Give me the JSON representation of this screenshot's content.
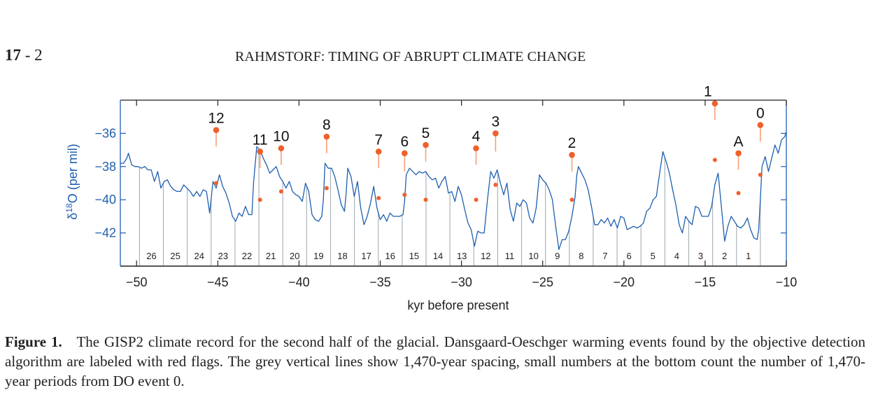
{
  "page": {
    "page_number_bold": "17",
    "page_number_sep": " - ",
    "page_number_sub": "2",
    "running_head": "RAHMSTORF: TIMING OF ABRUPT CLIMATE CHANGE"
  },
  "caption": {
    "label": "Figure 1.",
    "text": "The GISP2 climate record for the second half of the glacial. Dansgaard-Oeschger warming events found by the objective detection algorithm are labeled with red flags. The grey vertical lines show 1,470-year spacing, small numbers at the bottom count the number of 1,470-year periods from DO event 0."
  },
  "colors": {
    "series": "#1f5fb0",
    "flag": "#f0602a",
    "flag_stem": "#f4a07a",
    "grid_line": "#a9b4bb",
    "axis": "#231f20",
    "y_axis": "#1f5fb0"
  },
  "chart_data": {
    "type": "line",
    "title": "",
    "xlabel": "kyr before present",
    "ylabel": "δ18O (per mil)",
    "ylabel_parts": {
      "delta": "δ",
      "sup": "18",
      "rest": "O (per mil)"
    },
    "xlim": [
      -51,
      -10
    ],
    "ylim": [
      -44,
      -34
    ],
    "xticks": [
      -50,
      -45,
      -40,
      -35,
      -30,
      -25,
      -20,
      -15,
      -10
    ],
    "xtick_labels": [
      "−50",
      "−45",
      "−40",
      "−35",
      "−30",
      "−25",
      "−20",
      "−15",
      "−10"
    ],
    "yticks": [
      -36,
      -38,
      -40,
      -42
    ],
    "ytick_labels": [
      "−36",
      "−38",
      "−40",
      "−42"
    ],
    "grid": false,
    "period_years": 1470,
    "reference_event_kyr": -11.6,
    "period_lines_kyr": [
      -11.6,
      -13.07,
      -14.54,
      -16.01,
      -17.48,
      -18.95,
      -20.42,
      -21.89,
      -23.36,
      -24.83,
      -26.3,
      -27.77,
      -29.24,
      -30.71,
      -32.18,
      -33.65,
      -35.12,
      -36.59,
      -38.06,
      -39.53,
      -41.0,
      -42.47,
      -43.94,
      -45.41,
      -46.88,
      -48.35,
      -49.82
    ],
    "period_counts": [
      "1",
      "2",
      "3",
      "4",
      "5",
      "6",
      "7",
      "8",
      "9",
      "10",
      "11",
      "12",
      "13",
      "14",
      "15",
      "16",
      "17",
      "18",
      "19",
      "20",
      "21",
      "22",
      "23",
      "24",
      "25",
      "26"
    ],
    "series": [
      {
        "name": "GISP2 δ18O",
        "points": [
          [
            -51.0,
            -37.8
          ],
          [
            -50.8,
            -37.8
          ],
          [
            -50.6,
            -37.5
          ],
          [
            -50.5,
            -37.2
          ],
          [
            -50.3,
            -37.9
          ],
          [
            -50.1,
            -38.0
          ],
          [
            -49.9,
            -38.0
          ],
          [
            -49.7,
            -38.1
          ],
          [
            -49.5,
            -38.0
          ],
          [
            -49.3,
            -38.2
          ],
          [
            -49.1,
            -38.2
          ],
          [
            -48.9,
            -38.9
          ],
          [
            -48.7,
            -38.3
          ],
          [
            -48.5,
            -39.3
          ],
          [
            -48.3,
            -38.9
          ],
          [
            -48.1,
            -38.8
          ],
          [
            -47.9,
            -39.2
          ],
          [
            -47.7,
            -39.4
          ],
          [
            -47.5,
            -39.5
          ],
          [
            -47.3,
            -39.5
          ],
          [
            -47.1,
            -39.1
          ],
          [
            -46.9,
            -39.3
          ],
          [
            -46.7,
            -39.5
          ],
          [
            -46.5,
            -39.8
          ],
          [
            -46.3,
            -39.5
          ],
          [
            -46.1,
            -39.8
          ],
          [
            -45.9,
            -39.4
          ],
          [
            -45.7,
            -39.5
          ],
          [
            -45.5,
            -40.8
          ],
          [
            -45.3,
            -38.9
          ],
          [
            -45.1,
            -39.3
          ],
          [
            -44.9,
            -38.5
          ],
          [
            -44.7,
            -39.2
          ],
          [
            -44.5,
            -39.6
          ],
          [
            -44.3,
            -40.2
          ],
          [
            -44.1,
            -41.0
          ],
          [
            -43.9,
            -41.3
          ],
          [
            -43.7,
            -40.8
          ],
          [
            -43.5,
            -41.0
          ],
          [
            -43.3,
            -40.4
          ],
          [
            -43.1,
            -40.9
          ],
          [
            -42.9,
            -40.9
          ],
          [
            -42.8,
            -39.0
          ],
          [
            -42.6,
            -36.8
          ],
          [
            -42.4,
            -37.0
          ],
          [
            -42.2,
            -37.5
          ],
          [
            -42.0,
            -37.9
          ],
          [
            -41.8,
            -38.4
          ],
          [
            -41.6,
            -38.2
          ],
          [
            -41.4,
            -38.0
          ],
          [
            -41.2,
            -38.6
          ],
          [
            -41.0,
            -38.9
          ],
          [
            -40.8,
            -39.3
          ],
          [
            -40.6,
            -38.9
          ],
          [
            -40.4,
            -39.5
          ],
          [
            -40.2,
            -39.7
          ],
          [
            -40.0,
            -39.8
          ],
          [
            -39.8,
            -40.1
          ],
          [
            -39.6,
            -39.0
          ],
          [
            -39.4,
            -39.5
          ],
          [
            -39.2,
            -40.9
          ],
          [
            -39.0,
            -41.2
          ],
          [
            -38.8,
            -41.3
          ],
          [
            -38.6,
            -41.0
          ],
          [
            -38.5,
            -40.0
          ],
          [
            -38.4,
            -37.8
          ],
          [
            -38.2,
            -38.1
          ],
          [
            -38.0,
            -38.1
          ],
          [
            -37.8,
            -38.6
          ],
          [
            -37.6,
            -39.4
          ],
          [
            -37.4,
            -40.3
          ],
          [
            -37.2,
            -40.7
          ],
          [
            -37.1,
            -39.6
          ],
          [
            -37.0,
            -38.1
          ],
          [
            -36.8,
            -38.6
          ],
          [
            -36.6,
            -39.8
          ],
          [
            -36.4,
            -38.9
          ],
          [
            -36.2,
            -40.5
          ],
          [
            -36.0,
            -41.5
          ],
          [
            -35.8,
            -41.0
          ],
          [
            -35.6,
            -40.2
          ],
          [
            -35.4,
            -39.2
          ],
          [
            -35.2,
            -40.5
          ],
          [
            -35.0,
            -41.2
          ],
          [
            -34.8,
            -40.9
          ],
          [
            -34.6,
            -41.3
          ],
          [
            -34.4,
            -40.8
          ],
          [
            -34.2,
            -41.0
          ],
          [
            -34.0,
            -41.0
          ],
          [
            -33.8,
            -41.0
          ],
          [
            -33.6,
            -40.9
          ],
          [
            -33.5,
            -40.1
          ],
          [
            -33.4,
            -38.5
          ],
          [
            -33.2,
            -38.1
          ],
          [
            -33.0,
            -38.3
          ],
          [
            -32.8,
            -38.5
          ],
          [
            -32.6,
            -38.3
          ],
          [
            -32.4,
            -38.4
          ],
          [
            -32.2,
            -38.3
          ],
          [
            -32.0,
            -38.6
          ],
          [
            -31.8,
            -38.8
          ],
          [
            -31.6,
            -38.7
          ],
          [
            -31.4,
            -39.3
          ],
          [
            -31.2,
            -38.9
          ],
          [
            -31.0,
            -38.6
          ],
          [
            -30.8,
            -39.6
          ],
          [
            -30.6,
            -39.5
          ],
          [
            -30.4,
            -40.1
          ],
          [
            -30.2,
            -39.2
          ],
          [
            -30.0,
            -39.7
          ],
          [
            -29.8,
            -40.6
          ],
          [
            -29.6,
            -41.4
          ],
          [
            -29.4,
            -41.8
          ],
          [
            -29.2,
            -42.8
          ],
          [
            -29.0,
            -41.9
          ],
          [
            -28.8,
            -42.0
          ],
          [
            -28.6,
            -42.0
          ],
          [
            -28.4,
            -40.0
          ],
          [
            -28.2,
            -38.3
          ],
          [
            -28.0,
            -38.7
          ],
          [
            -27.8,
            -38.2
          ],
          [
            -27.6,
            -39.0
          ],
          [
            -27.4,
            -39.7
          ],
          [
            -27.2,
            -39.0
          ],
          [
            -27.0,
            -40.6
          ],
          [
            -26.8,
            -41.3
          ],
          [
            -26.6,
            -40.2
          ],
          [
            -26.4,
            -40.4
          ],
          [
            -26.2,
            -40.0
          ],
          [
            -26.0,
            -40.2
          ],
          [
            -25.8,
            -41.1
          ],
          [
            -25.6,
            -41.4
          ],
          [
            -25.4,
            -40.5
          ],
          [
            -25.3,
            -39.5
          ],
          [
            -25.2,
            -38.5
          ],
          [
            -25.0,
            -38.8
          ],
          [
            -24.8,
            -39.0
          ],
          [
            -24.6,
            -39.4
          ],
          [
            -24.4,
            -40.0
          ],
          [
            -24.2,
            -41.6
          ],
          [
            -24.0,
            -43.0
          ],
          [
            -23.8,
            -42.4
          ],
          [
            -23.6,
            -42.4
          ],
          [
            -23.4,
            -41.9
          ],
          [
            -23.2,
            -41.0
          ],
          [
            -23.0,
            -39.8
          ],
          [
            -22.9,
            -38.5
          ],
          [
            -22.8,
            -38.0
          ],
          [
            -22.6,
            -38.4
          ],
          [
            -22.4,
            -38.8
          ],
          [
            -22.2,
            -39.4
          ],
          [
            -22.0,
            -40.4
          ],
          [
            -21.8,
            -41.5
          ],
          [
            -21.6,
            -41.5
          ],
          [
            -21.4,
            -41.2
          ],
          [
            -21.2,
            -41.4
          ],
          [
            -21.0,
            -41.1
          ],
          [
            -20.8,
            -41.6
          ],
          [
            -20.6,
            -41.2
          ],
          [
            -20.4,
            -41.7
          ],
          [
            -20.2,
            -41.0
          ],
          [
            -20.0,
            -41.1
          ],
          [
            -19.8,
            -41.8
          ],
          [
            -19.6,
            -41.7
          ],
          [
            -19.4,
            -41.6
          ],
          [
            -19.2,
            -41.7
          ],
          [
            -19.0,
            -41.6
          ],
          [
            -18.8,
            -41.4
          ],
          [
            -18.6,
            -40.7
          ],
          [
            -18.4,
            -40.5
          ],
          [
            -18.2,
            -40.0
          ],
          [
            -18.0,
            -39.8
          ],
          [
            -17.8,
            -38.4
          ],
          [
            -17.6,
            -37.1
          ],
          [
            -17.4,
            -37.7
          ],
          [
            -17.2,
            -38.4
          ],
          [
            -17.0,
            -39.4
          ],
          [
            -16.8,
            -40.3
          ],
          [
            -16.6,
            -41.5
          ],
          [
            -16.4,
            -42.0
          ],
          [
            -16.2,
            -41.0
          ],
          [
            -16.0,
            -41.3
          ],
          [
            -15.8,
            -41.5
          ],
          [
            -15.6,
            -40.4
          ],
          [
            -15.4,
            -40.5
          ],
          [
            -15.2,
            -41.0
          ],
          [
            -15.0,
            -41.0
          ],
          [
            -14.8,
            -41.0
          ],
          [
            -14.6,
            -40.4
          ],
          [
            -14.4,
            -39.1
          ],
          [
            -14.2,
            -38.4
          ],
          [
            -14.0,
            -40.4
          ],
          [
            -13.8,
            -42.5
          ],
          [
            -13.6,
            -41.6
          ],
          [
            -13.4,
            -41.0
          ],
          [
            -13.2,
            -41.3
          ],
          [
            -13.0,
            -41.6
          ],
          [
            -12.8,
            -41.7
          ],
          [
            -12.6,
            -41.5
          ],
          [
            -12.4,
            -41.1
          ],
          [
            -12.2,
            -41.8
          ],
          [
            -12.0,
            -42.3
          ],
          [
            -11.8,
            -42.4
          ],
          [
            -11.7,
            -41.8
          ],
          [
            -11.6,
            -40.0
          ],
          [
            -11.5,
            -38.0
          ],
          [
            -11.3,
            -37.4
          ],
          [
            -11.1,
            -38.3
          ],
          [
            -10.9,
            -37.5
          ],
          [
            -10.7,
            -36.7
          ],
          [
            -10.5,
            -37.2
          ],
          [
            -10.3,
            -36.4
          ],
          [
            -10.1,
            -36.2
          ],
          [
            -10.0,
            -35.9
          ]
        ]
      }
    ],
    "events": [
      {
        "label": "12",
        "x": -45.1,
        "flag_y": -35.8,
        "peak_y": -36.8,
        "mid_y": -39.0
      },
      {
        "label": "11",
        "x": -42.4,
        "flag_y": -37.1,
        "peak_y": -38.1,
        "mid_y": -40.0
      },
      {
        "label": "10",
        "x": -41.1,
        "flag_y": -36.9,
        "peak_y": -37.9,
        "mid_y": -39.5
      },
      {
        "label": "8",
        "x": -38.3,
        "flag_y": -36.2,
        "peak_y": -37.2,
        "mid_y": -39.3
      },
      {
        "label": "7",
        "x": -35.1,
        "flag_y": -37.1,
        "peak_y": -38.1,
        "mid_y": -39.9
      },
      {
        "label": "6",
        "x": -33.5,
        "flag_y": -37.2,
        "peak_y": -38.3,
        "mid_y": -39.7
      },
      {
        "label": "5",
        "x": -32.2,
        "flag_y": -36.7,
        "peak_y": -37.7,
        "mid_y": -40.0
      },
      {
        "label": "4",
        "x": -29.1,
        "flag_y": -36.9,
        "peak_y": -37.9,
        "mid_y": -40.0
      },
      {
        "label": "3",
        "x": -27.9,
        "flag_y": -36.0,
        "peak_y": -37.1,
        "mid_y": -39.1
      },
      {
        "label": "2",
        "x": -23.2,
        "flag_y": -37.3,
        "peak_y": -38.3,
        "mid_y": -40.0
      },
      {
        "label": "1",
        "x": -14.4,
        "flag_y": -34.2,
        "peak_y": -35.2,
        "mid_y": -37.6
      },
      {
        "label": "A",
        "x": -12.95,
        "flag_y": -37.2,
        "peak_y": -38.2,
        "mid_y": -39.6
      },
      {
        "label": "0",
        "x": -11.6,
        "flag_y": -35.5,
        "peak_y": -36.5,
        "mid_y": -38.5
      }
    ]
  }
}
